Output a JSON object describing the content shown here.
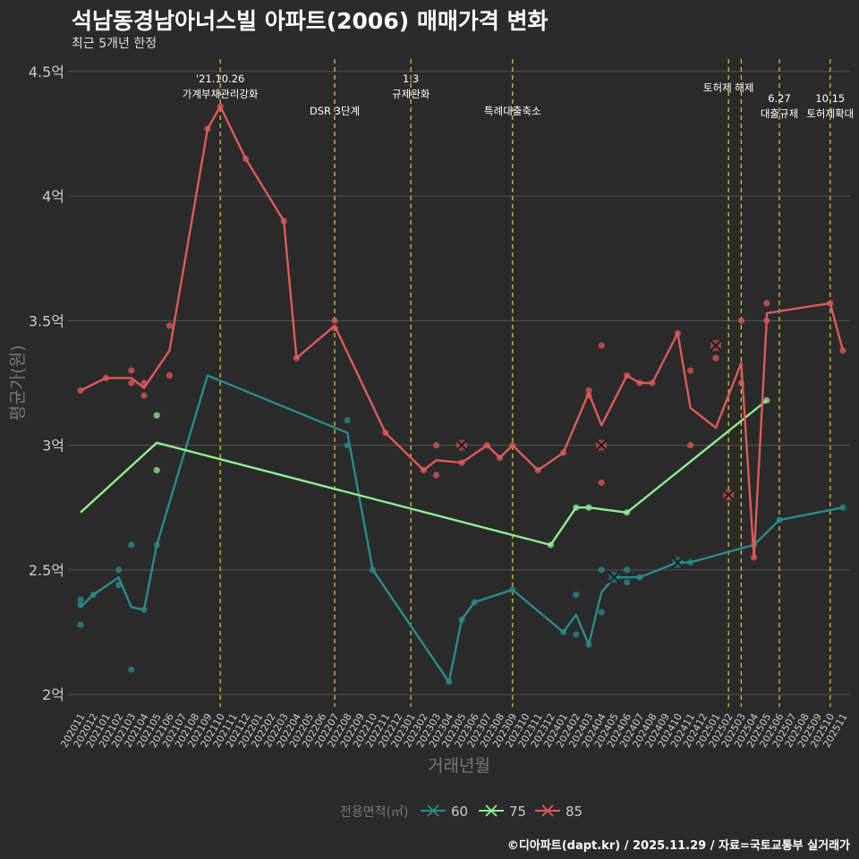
{
  "title": "석남동경남아너스빌 아파트(2006) 매매가격 변화",
  "subtitle": "최근 5개년 한정",
  "caption": "©디아파트(dapt.kr) / 2025.11.29 / 자료=국토교통부 실거래가",
  "colors": {
    "background": "#2b2b2b",
    "grid": "#555555",
    "event": "#c8c832",
    "text": "#cccccc",
    "axis_title": "#777777"
  },
  "chart_data": {
    "type": "line",
    "title": "석남동경남아너스빌 아파트(2006) 매매가격 변화",
    "xlabel": "거래년월",
    "ylabel": "평균가(원)",
    "ylim": [
      1.95,
      4.55
    ],
    "ytick_values": [
      2,
      2.5,
      3,
      3.5,
      4,
      4.5
    ],
    "ytick_labels": [
      "2억",
      "2.5억",
      "3억",
      "3.5억",
      "4억",
      "4.5억"
    ],
    "categories": [
      "202011",
      "202012",
      "202101",
      "202102",
      "202103",
      "202104",
      "202105",
      "202106",
      "202107",
      "202108",
      "202109",
      "202110",
      "202111",
      "202112",
      "202201",
      "202202",
      "202203",
      "202204",
      "202205",
      "202206",
      "202207",
      "202208",
      "202209",
      "202210",
      "202211",
      "202212",
      "202301",
      "202302",
      "202303",
      "202304",
      "202305",
      "202306",
      "202307",
      "202308",
      "202309",
      "202310",
      "202311",
      "202312",
      "202401",
      "202402",
      "202403",
      "202404",
      "202405",
      "202406",
      "202407",
      "202408",
      "202409",
      "202410",
      "202411",
      "202412",
      "202501",
      "202502",
      "202503",
      "202504",
      "202505",
      "202506",
      "202507",
      "202508",
      "202509",
      "202510",
      "202511"
    ],
    "legend_title": "전용면적(㎡)",
    "legend_position": "bottom",
    "series": [
      {
        "name": "60",
        "color": "#2a8c8c",
        "line": [
          [
            0,
            2.35
          ],
          [
            1,
            2.4
          ],
          [
            3,
            2.47
          ],
          [
            4,
            2.35
          ],
          [
            5,
            2.34
          ],
          [
            6,
            2.6
          ],
          [
            10,
            3.28
          ],
          [
            21,
            3.05
          ],
          [
            23,
            2.5
          ],
          [
            29,
            2.05
          ],
          [
            30,
            2.3
          ],
          [
            31,
            2.37
          ],
          [
            34,
            2.42
          ],
          [
            38,
            2.25
          ],
          [
            39,
            2.32
          ],
          [
            40,
            2.2
          ],
          [
            41,
            2.41
          ],
          [
            42,
            2.47
          ],
          [
            43,
            2.47
          ],
          [
            44,
            2.47
          ],
          [
            47,
            2.53
          ],
          [
            48,
            2.53
          ],
          [
            53,
            2.6
          ],
          [
            55,
            2.7
          ],
          [
            60,
            2.75
          ]
        ],
        "points": [
          [
            0,
            2.38
          ],
          [
            0,
            2.36
          ],
          [
            0,
            2.28
          ],
          [
            1,
            2.4
          ],
          [
            3,
            2.5
          ],
          [
            3,
            2.44
          ],
          [
            4,
            2.6
          ],
          [
            4,
            2.1
          ],
          [
            5,
            2.34
          ],
          [
            6,
            2.6
          ],
          [
            21,
            3.1
          ],
          [
            21,
            3.0
          ],
          [
            23,
            2.5
          ],
          [
            29,
            2.05
          ],
          [
            30,
            2.3
          ],
          [
            31,
            2.37
          ],
          [
            34,
            2.42
          ],
          [
            38,
            2.25
          ],
          [
            39,
            2.4
          ],
          [
            39,
            2.24
          ],
          [
            40,
            2.2
          ],
          [
            41,
            2.5
          ],
          [
            41,
            2.33
          ],
          [
            43,
            2.5
          ],
          [
            43,
            2.45
          ],
          [
            44,
            2.47
          ],
          [
            48,
            2.53
          ],
          [
            53,
            2.6
          ],
          [
            55,
            2.7
          ],
          [
            60,
            2.75
          ]
        ],
        "cancelled": [
          [
            42,
            2.47
          ],
          [
            47,
            2.53
          ]
        ]
      },
      {
        "name": "75",
        "color": "#90ee90",
        "line": [
          [
            0,
            2.73
          ],
          [
            6,
            3.01
          ],
          [
            37,
            2.6
          ],
          [
            39,
            2.75
          ],
          [
            40,
            2.75
          ],
          [
            43,
            2.73
          ],
          [
            54,
            3.18
          ]
        ],
        "points": [
          [
            6,
            3.12
          ],
          [
            6,
            2.9
          ],
          [
            37,
            2.6
          ],
          [
            39,
            2.75
          ],
          [
            40,
            2.75
          ],
          [
            43,
            2.73
          ],
          [
            54,
            3.18
          ]
        ],
        "cancelled": []
      },
      {
        "name": "85",
        "color": "#e05a5a",
        "line": [
          [
            0,
            3.22
          ],
          [
            2,
            3.27
          ],
          [
            4,
            3.27
          ],
          [
            5,
            3.23
          ],
          [
            7,
            3.38
          ],
          [
            10,
            4.27
          ],
          [
            11,
            4.36
          ],
          [
            13,
            4.15
          ],
          [
            16,
            3.9
          ],
          [
            17,
            3.35
          ],
          [
            20,
            3.48
          ],
          [
            24,
            3.05
          ],
          [
            27,
            2.9
          ],
          [
            28,
            2.94
          ],
          [
            30,
            2.93
          ],
          [
            32,
            3.0
          ],
          [
            33,
            2.95
          ],
          [
            34,
            3.0
          ],
          [
            36,
            2.9
          ],
          [
            38,
            2.97
          ],
          [
            40,
            3.21
          ],
          [
            41,
            3.08
          ],
          [
            43,
            3.28
          ],
          [
            44,
            3.25
          ],
          [
            45,
            3.25
          ],
          [
            47,
            3.45
          ],
          [
            48,
            3.15
          ],
          [
            50,
            3.07
          ],
          [
            52,
            3.33
          ],
          [
            53,
            2.55
          ],
          [
            54,
            3.5
          ],
          [
            54,
            3.53
          ],
          [
            59,
            3.57
          ],
          [
            60,
            3.38
          ]
        ],
        "points": [
          [
            0,
            3.22
          ],
          [
            2,
            3.27
          ],
          [
            4,
            3.3
          ],
          [
            4,
            3.25
          ],
          [
            5,
            3.25
          ],
          [
            5,
            3.2
          ],
          [
            7,
            3.48
          ],
          [
            7,
            3.28
          ],
          [
            10,
            4.27
          ],
          [
            11,
            4.36
          ],
          [
            13,
            4.15
          ],
          [
            16,
            3.9
          ],
          [
            17,
            3.35
          ],
          [
            20,
            3.5
          ],
          [
            20,
            3.47
          ],
          [
            24,
            3.05
          ],
          [
            27,
            2.9
          ],
          [
            28,
            3.0
          ],
          [
            28,
            2.88
          ],
          [
            30,
            2.93
          ],
          [
            32,
            3.0
          ],
          [
            33,
            2.95
          ],
          [
            34,
            3.0
          ],
          [
            36,
            2.9
          ],
          [
            38,
            2.97
          ],
          [
            40,
            3.22
          ],
          [
            40,
            3.2
          ],
          [
            41,
            3.4
          ],
          [
            41,
            2.85
          ],
          [
            43,
            3.28
          ],
          [
            44,
            3.25
          ],
          [
            45,
            3.25
          ],
          [
            47,
            3.45
          ],
          [
            48,
            3.3
          ],
          [
            48,
            3.0
          ],
          [
            50,
            3.35
          ],
          [
            52,
            3.5
          ],
          [
            52,
            3.25
          ],
          [
            53,
            2.55
          ],
          [
            54,
            3.57
          ],
          [
            54,
            3.5
          ],
          [
            59,
            3.57
          ],
          [
            60,
            3.38
          ]
        ],
        "cancelled": [
          [
            30,
            3.0
          ],
          [
            41,
            3.0
          ],
          [
            50,
            3.4
          ],
          [
            51,
            2.8
          ]
        ]
      }
    ],
    "events": [
      {
        "x": 11,
        "lines": [
          "'21.10.26",
          "가계부채관리강화"
        ],
        "level": 0
      },
      {
        "x": 20,
        "lines": [
          "DSR 3단계"
        ],
        "level": 2
      },
      {
        "x": 26,
        "lines": [
          "1.3",
          "규제완화"
        ],
        "level": 0
      },
      {
        "x": 34,
        "lines": [
          "특례대출축소"
        ],
        "level": 2
      },
      {
        "x": 51,
        "lines": [
          "토허제 해제"
        ],
        "level": 1
      },
      {
        "x": 52,
        "lines": [],
        "level": 1
      },
      {
        "x": 55,
        "lines": [
          "6.27",
          "대출규제"
        ],
        "level": 2
      },
      {
        "x": 59,
        "lines": [
          "10.15",
          "토허제확대"
        ],
        "level": 2
      }
    ]
  }
}
